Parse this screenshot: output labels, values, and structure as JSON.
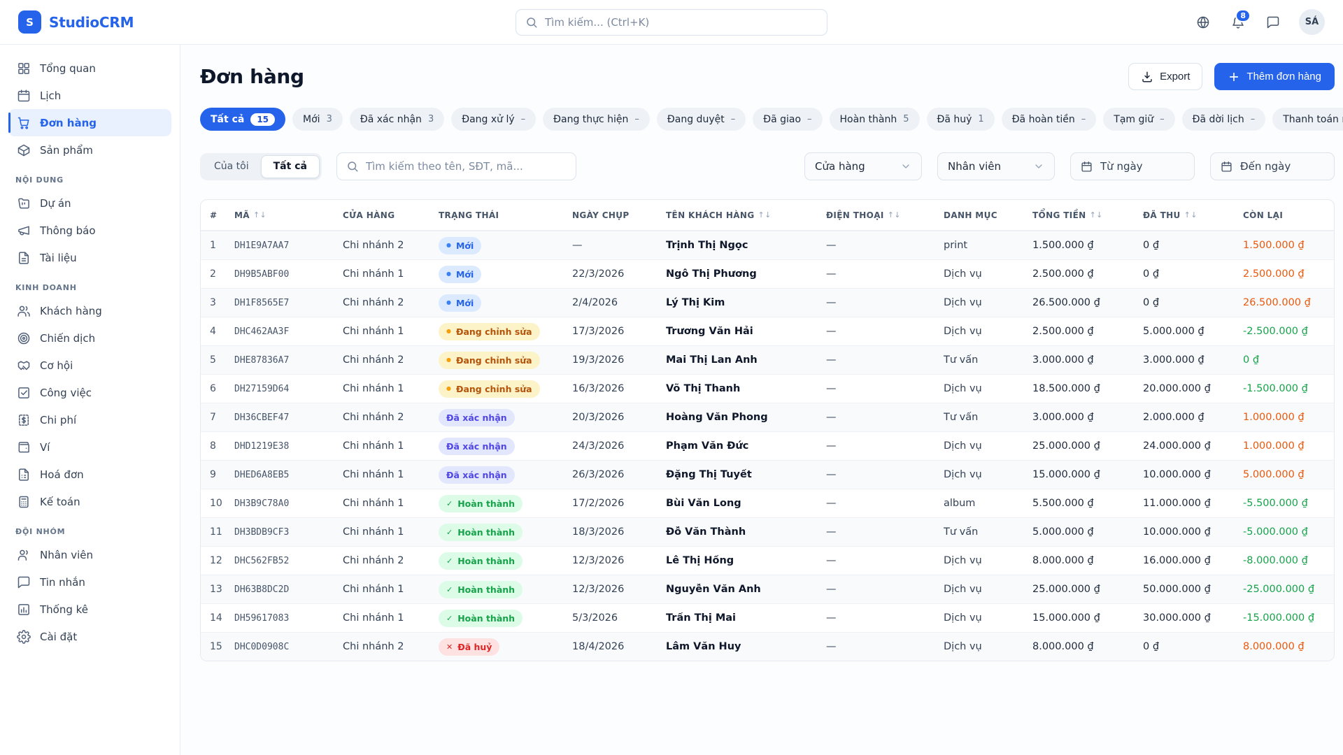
{
  "brand": {
    "logo_letter": "S",
    "name": "StudioCRM"
  },
  "topbar": {
    "search_placeholder": "Tìm kiếm... (Ctrl+K)",
    "icons": [
      {
        "icon": "globe-icon",
        "badge": ""
      },
      {
        "icon": "bell-icon",
        "badge": "8"
      },
      {
        "icon": "chat-icon",
        "badge": ""
      }
    ],
    "avatar_initials": "SÁ"
  },
  "sidebar": {
    "sections": [
      {
        "label": "",
        "items": [
          {
            "label": "Tổng quan",
            "icon": "grid-icon",
            "state": ""
          },
          {
            "label": "Lịch",
            "icon": "calendar-icon",
            "state": ""
          },
          {
            "label": "Đơn hàng",
            "icon": "cart-icon",
            "state": "active"
          },
          {
            "label": "Sản phẩm",
            "icon": "package-icon",
            "state": ""
          }
        ]
      },
      {
        "label": "NỘI DUNG",
        "items": [
          {
            "label": "Dự án",
            "icon": "folder-icon",
            "state": ""
          },
          {
            "label": "Thông báo",
            "icon": "megaphone-icon",
            "state": ""
          },
          {
            "label": "Tài liệu",
            "icon": "file-icon",
            "state": ""
          }
        ]
      },
      {
        "label": "KINH DOANH",
        "items": [
          {
            "label": "Khách hàng",
            "icon": "users-icon",
            "state": ""
          },
          {
            "label": "Chiến dịch",
            "icon": "target-icon",
            "state": ""
          },
          {
            "label": "Cơ hội",
            "icon": "handshake-icon",
            "state": ""
          },
          {
            "label": "Công việc",
            "icon": "task-icon",
            "state": ""
          },
          {
            "label": "Chi phí",
            "icon": "expense-icon",
            "state": ""
          },
          {
            "label": "Ví",
            "icon": "wallet-icon",
            "state": ""
          },
          {
            "label": "Hoá đơn",
            "icon": "invoice-icon",
            "state": ""
          },
          {
            "label": "Kế toán",
            "icon": "calculator-icon",
            "state": ""
          }
        ]
      },
      {
        "label": "ĐỘI NHÓM",
        "items": [
          {
            "label": "Nhân viên",
            "icon": "staff-icon",
            "state": ""
          },
          {
            "label": "Tin nhắn",
            "icon": "message-icon",
            "state": ""
          },
          {
            "label": "Thống kê",
            "icon": "chart-icon",
            "state": ""
          },
          {
            "label": "Cài đặt",
            "icon": "gear-icon",
            "state": ""
          }
        ]
      }
    ]
  },
  "page": {
    "title": "Đơn hàng",
    "export_label": "Export",
    "add_label": "Thêm đơn hàng"
  },
  "status_filters": [
    {
      "label": "Tất cả",
      "count": "15",
      "state": "active"
    },
    {
      "label": "Mới",
      "count": "3",
      "state": ""
    },
    {
      "label": "Đã xác nhận",
      "count": "3",
      "state": ""
    },
    {
      "label": "Đang xử lý",
      "count": "–",
      "state": ""
    },
    {
      "label": "Đang thực hiện",
      "count": "–",
      "state": ""
    },
    {
      "label": "Đang duyệt",
      "count": "–",
      "state": ""
    },
    {
      "label": "Đã giao",
      "count": "–",
      "state": ""
    },
    {
      "label": "Hoàn thành",
      "count": "5",
      "state": ""
    },
    {
      "label": "Đã huỷ",
      "count": "1",
      "state": ""
    },
    {
      "label": "Đã hoàn tiền",
      "count": "–",
      "state": ""
    },
    {
      "label": "Tạm giữ",
      "count": "–",
      "state": ""
    },
    {
      "label": "Đã dời lịch",
      "count": "–",
      "state": ""
    },
    {
      "label": "Thanh toán n",
      "count": "",
      "state": ""
    }
  ],
  "filters": {
    "scope_my": "Của tôi",
    "scope_all": "Tất cả",
    "search_placeholder": "Tìm kiếm theo tên, SĐT, mã...",
    "store_select": "Cửa hàng",
    "staff_select": "Nhân viên",
    "date_from": "Từ ngày",
    "date_to": "Đến ngày"
  },
  "table": {
    "columns": [
      {
        "label": "#",
        "sort": ""
      },
      {
        "label": "MÃ",
        "sort": "↑↓"
      },
      {
        "label": "CỬA HÀNG",
        "sort": ""
      },
      {
        "label": "TRẠNG THÁI",
        "sort": ""
      },
      {
        "label": "NGÀY CHỤP",
        "sort": ""
      },
      {
        "label": "TÊN KHÁCH HÀNG",
        "sort": "↑↓"
      },
      {
        "label": "ĐIỆN THOẠI",
        "sort": "↑↓"
      },
      {
        "label": "DANH MỤC",
        "sort": ""
      },
      {
        "label": "TỔNG TIỀN",
        "sort": "↑↓"
      },
      {
        "label": "ĐÃ THU",
        "sort": "↑↓"
      },
      {
        "label": "CÒN LẠI",
        "sort": ""
      }
    ],
    "rows": [
      {
        "num": "1",
        "code": "DH1E9A7AA7",
        "store": "Chi nhánh 2",
        "status": {
          "label": "Mới",
          "type": "new",
          "icon": "●"
        },
        "date": "—",
        "customer": "Trịnh Thị Ngọc",
        "phone": "—",
        "category": "print",
        "total": "1.500.000 ₫",
        "paid": "0 ₫",
        "remaining": {
          "value": "1.500.000 ₫",
          "tone": "pos"
        }
      },
      {
        "num": "2",
        "code": "DH9B5ABF00",
        "store": "Chi nhánh 1",
        "status": {
          "label": "Mới",
          "type": "new",
          "icon": "●"
        },
        "date": "22/3/2026",
        "customer": "Ngô Thị Phương",
        "phone": "—",
        "category": "Dịch vụ",
        "total": "2.500.000 ₫",
        "paid": "0 ₫",
        "remaining": {
          "value": "2.500.000 ₫",
          "tone": "pos"
        }
      },
      {
        "num": "3",
        "code": "DH1F8565E7",
        "store": "Chi nhánh 2",
        "status": {
          "label": "Mới",
          "type": "new",
          "icon": "●"
        },
        "date": "2/4/2026",
        "customer": "Lý Thị Kim",
        "phone": "—",
        "category": "Dịch vụ",
        "total": "26.500.000 ₫",
        "paid": "0 ₫",
        "remaining": {
          "value": "26.500.000 ₫",
          "tone": "pos"
        }
      },
      {
        "num": "4",
        "code": "DHC462AA3F",
        "store": "Chi nhánh 1",
        "status": {
          "label": "Đang chỉnh sửa",
          "type": "editing",
          "icon": "●"
        },
        "date": "17/3/2026",
        "customer": "Trương Văn Hải",
        "phone": "—",
        "category": "Dịch vụ",
        "total": "2.500.000 ₫",
        "paid": "5.000.000 ₫",
        "remaining": {
          "value": "-2.500.000 ₫",
          "tone": "neg"
        }
      },
      {
        "num": "5",
        "code": "DHE87836A7",
        "store": "Chi nhánh 2",
        "status": {
          "label": "Đang chỉnh sửa",
          "type": "editing",
          "icon": "●"
        },
        "date": "19/3/2026",
        "customer": "Mai Thị Lan Anh",
        "phone": "—",
        "category": "Tư vấn",
        "total": "3.000.000 ₫",
        "paid": "3.000.000 ₫",
        "remaining": {
          "value": "0 ₫",
          "tone": "neg"
        }
      },
      {
        "num": "6",
        "code": "DH27159D64",
        "store": "Chi nhánh 1",
        "status": {
          "label": "Đang chỉnh sửa",
          "type": "editing",
          "icon": "●"
        },
        "date": "16/3/2026",
        "customer": "Võ Thị Thanh",
        "phone": "—",
        "category": "Dịch vụ",
        "total": "18.500.000 ₫",
        "paid": "20.000.000 ₫",
        "remaining": {
          "value": "-1.500.000 ₫",
          "tone": "neg"
        }
      },
      {
        "num": "7",
        "code": "DH36CBEF47",
        "store": "Chi nhánh 2",
        "status": {
          "label": "Đã xác nhận",
          "type": "confirmed",
          "icon": ""
        },
        "date": "20/3/2026",
        "customer": "Hoàng Văn Phong",
        "phone": "—",
        "category": "Tư vấn",
        "total": "3.000.000 ₫",
        "paid": "2.000.000 ₫",
        "remaining": {
          "value": "1.000.000 ₫",
          "tone": "pos"
        }
      },
      {
        "num": "8",
        "code": "DHD1219E38",
        "store": "Chi nhánh 1",
        "status": {
          "label": "Đã xác nhận",
          "type": "confirmed",
          "icon": ""
        },
        "date": "24/3/2026",
        "customer": "Phạm Văn Đức",
        "phone": "—",
        "category": "Dịch vụ",
        "total": "25.000.000 ₫",
        "paid": "24.000.000 ₫",
        "remaining": {
          "value": "1.000.000 ₫",
          "tone": "pos"
        }
      },
      {
        "num": "9",
        "code": "DHED6A8EB5",
        "store": "Chi nhánh 1",
        "status": {
          "label": "Đã xác nhận",
          "type": "confirmed",
          "icon": ""
        },
        "date": "26/3/2026",
        "customer": "Đặng Thị Tuyết",
        "phone": "—",
        "category": "Dịch vụ",
        "total": "15.000.000 ₫",
        "paid": "10.000.000 ₫",
        "remaining": {
          "value": "5.000.000 ₫",
          "tone": "pos"
        }
      },
      {
        "num": "10",
        "code": "DH3B9C78A0",
        "store": "Chi nhánh 1",
        "status": {
          "label": "Hoàn thành",
          "type": "done",
          "icon": "✓"
        },
        "date": "17/2/2026",
        "customer": "Bùi Văn Long",
        "phone": "—",
        "category": "album",
        "total": "5.500.000 ₫",
        "paid": "11.000.000 ₫",
        "remaining": {
          "value": "-5.500.000 ₫",
          "tone": "neg"
        }
      },
      {
        "num": "11",
        "code": "DH3BDB9CF3",
        "store": "Chi nhánh 1",
        "status": {
          "label": "Hoàn thành",
          "type": "done",
          "icon": "✓"
        },
        "date": "18/3/2026",
        "customer": "Đỗ Văn Thành",
        "phone": "—",
        "category": "Tư vấn",
        "total": "5.000.000 ₫",
        "paid": "10.000.000 ₫",
        "remaining": {
          "value": "-5.000.000 ₫",
          "tone": "neg"
        }
      },
      {
        "num": "12",
        "code": "DHC562FB52",
        "store": "Chi nhánh 2",
        "status": {
          "label": "Hoàn thành",
          "type": "done",
          "icon": "✓"
        },
        "date": "12/3/2026",
        "customer": "Lê Thị Hồng",
        "phone": "—",
        "category": "Dịch vụ",
        "total": "8.000.000 ₫",
        "paid": "16.000.000 ₫",
        "remaining": {
          "value": "-8.000.000 ₫",
          "tone": "neg"
        }
      },
      {
        "num": "13",
        "code": "DH63B8DC2D",
        "store": "Chi nhánh 1",
        "status": {
          "label": "Hoàn thành",
          "type": "done",
          "icon": "✓"
        },
        "date": "12/3/2026",
        "customer": "Nguyễn Văn Anh",
        "phone": "—",
        "category": "Dịch vụ",
        "total": "25.000.000 ₫",
        "paid": "50.000.000 ₫",
        "remaining": {
          "value": "-25.000.000 ₫",
          "tone": "neg"
        }
      },
      {
        "num": "14",
        "code": "DH59617083",
        "store": "Chi nhánh 1",
        "status": {
          "label": "Hoàn thành",
          "type": "done",
          "icon": "✓"
        },
        "date": "5/3/2026",
        "customer": "Trần Thị Mai",
        "phone": "—",
        "category": "Dịch vụ",
        "total": "15.000.000 ₫",
        "paid": "30.000.000 ₫",
        "remaining": {
          "value": "-15.000.000 ₫",
          "tone": "neg"
        }
      },
      {
        "num": "15",
        "code": "DHC0D0908C",
        "store": "Chi nhánh 2",
        "status": {
          "label": "Đã huỷ",
          "type": "cancelled",
          "icon": "✕"
        },
        "date": "18/4/2026",
        "customer": "Lâm Văn Huy",
        "phone": "—",
        "category": "Dịch vụ",
        "total": "8.000.000 ₫",
        "paid": "0 ₫",
        "remaining": {
          "value": "8.000.000 ₫",
          "tone": "pos"
        }
      }
    ]
  }
}
